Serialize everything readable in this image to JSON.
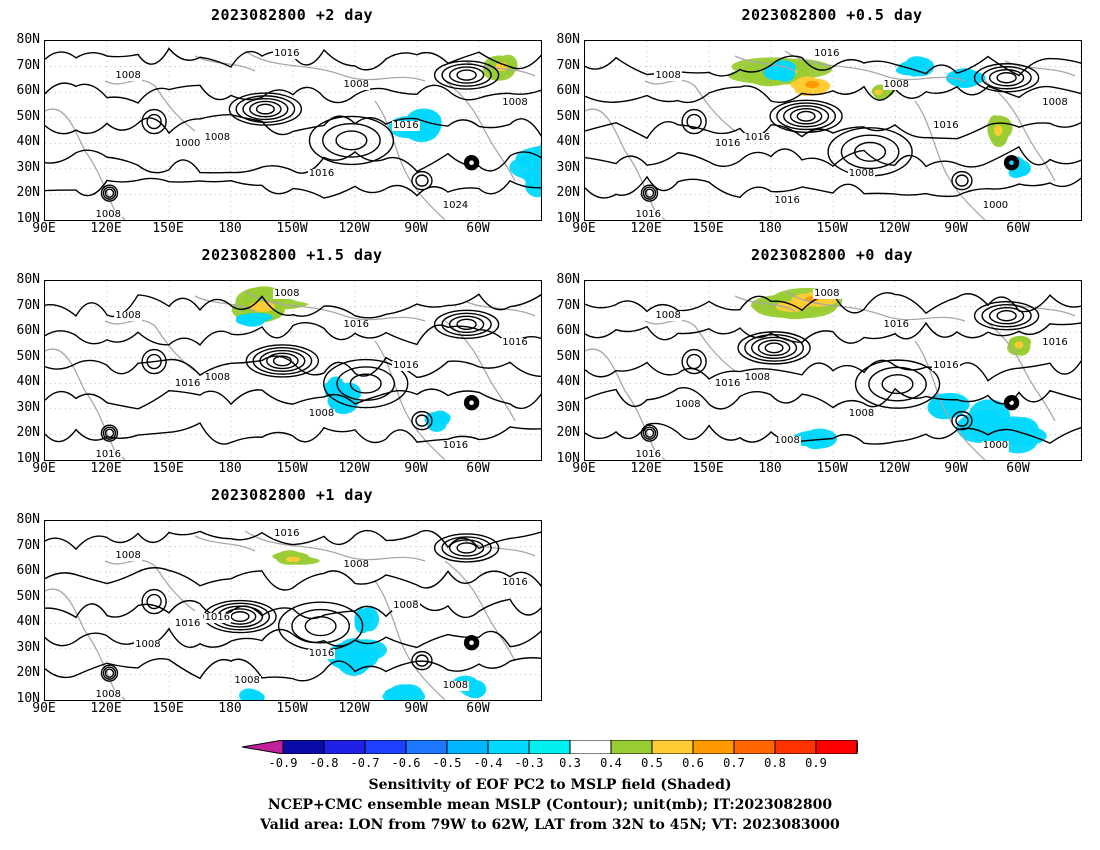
{
  "panels": [
    {
      "title": "2023082800 +2 day",
      "contour_labels": [
        "1008",
        "1016",
        "1008",
        "1008",
        "1000",
        "1016",
        "1024",
        "1016",
        "1008",
        "1008"
      ],
      "shading": [
        {
          "lon": -24,
          "lat": 32,
          "rx": 22,
          "ry": 8,
          "v": -0.35
        },
        {
          "lon": -28,
          "lat": 25,
          "rx": 10,
          "ry": 5,
          "v": -0.35
        },
        {
          "lon": -12,
          "lat": 30,
          "rx": 15,
          "ry": 7,
          "v": -0.35
        },
        {
          "lon": -58,
          "lat": 75,
          "rx": 12,
          "ry": 3,
          "v": 0.4
        },
        {
          "lon": -18,
          "lat": 72,
          "rx": 16,
          "ry": 5,
          "v": 0.4
        },
        {
          "lon": -12,
          "lat": 70,
          "rx": 5,
          "ry": 3,
          "v": 0.55
        },
        {
          "lon": -75,
          "lat": 60,
          "rx": 14,
          "ry": 5,
          "v": 0.4
        },
        {
          "lon": -90,
          "lat": 48,
          "rx": 12,
          "ry": 6,
          "v": -0.35
        },
        {
          "lon": -70,
          "lat": 35,
          "rx": 5,
          "ry": 3,
          "v": 0.4
        },
        {
          "lon": -49,
          "lat": 70,
          "rx": 8,
          "ry": 5,
          "v": 0.45
        }
      ]
    },
    {
      "title": "2023082800 +0.5 day",
      "contour_labels": [
        "1008",
        "1016",
        "1008",
        "1016",
        "1016",
        "1008",
        "1000",
        "1016",
        "1016",
        "1008",
        "1016"
      ],
      "shading": [
        {
          "lon": -175,
          "lat": 68,
          "rx": 22,
          "ry": 6,
          "v": 0.45
        },
        {
          "lon": -160,
          "lat": 63,
          "rx": 10,
          "ry": 4,
          "v": 0.6
        },
        {
          "lon": -95,
          "lat": 70,
          "rx": 18,
          "ry": 6,
          "v": 0.4
        },
        {
          "lon": -70,
          "lat": 45,
          "rx": 6,
          "ry": 6,
          "v": 0.5
        },
        {
          "lon": -85,
          "lat": 45,
          "rx": 4,
          "ry": 4,
          "v": 0.4
        },
        {
          "lon": -85,
          "lat": 65,
          "rx": 10,
          "ry": 4,
          "v": -0.35
        },
        {
          "lon": -110,
          "lat": 70,
          "rx": 8,
          "ry": 4,
          "v": -0.35
        },
        {
          "lon": -175,
          "lat": 68,
          "rx": 8,
          "ry": 4,
          "v": -0.35
        },
        {
          "lon": -128,
          "lat": 60,
          "rx": 6,
          "ry": 3,
          "v": 0.5
        },
        {
          "lon": -60,
          "lat": 30,
          "rx": 5,
          "ry": 4,
          "v": -0.35
        }
      ]
    },
    {
      "title": "2023082800 +1.5 day",
      "contour_labels": [
        "1008",
        "1008",
        "1016",
        "1008",
        "1016",
        "1008",
        "1016",
        "1016",
        "1016",
        "1016"
      ],
      "shading": [
        {
          "lon": -165,
          "lat": 70,
          "rx": 18,
          "ry": 6,
          "v": 0.45
        },
        {
          "lon": -140,
          "lat": 75,
          "rx": 12,
          "ry": 4,
          "v": 0.4
        },
        {
          "lon": -125,
          "lat": 35,
          "rx": 8,
          "ry": 6,
          "v": -0.35
        },
        {
          "lon": -130,
          "lat": 38,
          "rx": 5,
          "ry": 4,
          "v": -0.35
        },
        {
          "lon": -108,
          "lat": 65,
          "rx": 8,
          "ry": 4,
          "v": 0.4
        },
        {
          "lon": -70,
          "lat": 35,
          "rx": 6,
          "ry": 5,
          "v": 0.4
        },
        {
          "lon": -80,
          "lat": 25,
          "rx": 5,
          "ry": 4,
          "v": -0.35
        },
        {
          "lon": -170,
          "lat": 65,
          "rx": 8,
          "ry": 3,
          "v": -0.35
        }
      ]
    },
    {
      "title": "2023082800 +0 day",
      "contour_labels": [
        "1008",
        "1008",
        "1016",
        "1008",
        "1016",
        "1008",
        "1000",
        "1016",
        "1016",
        "1016",
        "1008",
        "1008"
      ],
      "shading": [
        {
          "lon": -170,
          "lat": 70,
          "rx": 22,
          "ry": 6,
          "v": 0.45
        },
        {
          "lon": -160,
          "lat": 73,
          "rx": 10,
          "ry": 3,
          "v": 0.6
        },
        {
          "lon": -130,
          "lat": 75,
          "rx": 10,
          "ry": 3,
          "v": 0.4
        },
        {
          "lon": -170,
          "lat": 55,
          "rx": 8,
          "ry": 4,
          "v": 0.4
        },
        {
          "lon": -65,
          "lat": 60,
          "rx": 6,
          "ry": 4,
          "v": 0.4
        },
        {
          "lon": -60,
          "lat": 55,
          "rx": 6,
          "ry": 4,
          "v": 0.45
        },
        {
          "lon": -75,
          "lat": 25,
          "rx": 12,
          "ry": 7,
          "v": -0.35
        },
        {
          "lon": -60,
          "lat": 20,
          "rx": 12,
          "ry": 6,
          "v": -0.35
        },
        {
          "lon": -158,
          "lat": 18,
          "rx": 10,
          "ry": 4,
          "v": -0.35
        },
        {
          "lon": -95,
          "lat": 32,
          "rx": 10,
          "ry": 5,
          "v": -0.35
        },
        {
          "lon": -160,
          "lat": 40,
          "rx": 6,
          "ry": 4,
          "v": 0.4
        }
      ]
    },
    {
      "title": "2023082800 +1 day",
      "contour_labels": [
        "1008",
        "1016",
        "1008",
        "1016",
        "1016",
        "1016",
        "1008",
        "1008",
        "1008",
        "1016",
        "1008",
        "1008"
      ],
      "shading": [
        {
          "lon": -118,
          "lat": 30,
          "rx": 12,
          "ry": 8,
          "v": -0.35
        },
        {
          "lon": -115,
          "lat": 40,
          "rx": 6,
          "ry": 5,
          "v": -0.35
        },
        {
          "lon": -120,
          "lat": 65,
          "rx": 10,
          "ry": 4,
          "v": 0.4
        },
        {
          "lon": -150,
          "lat": 65,
          "rx": 10,
          "ry": 3,
          "v": 0.45
        },
        {
          "lon": -170,
          "lat": 62,
          "rx": 6,
          "ry": 3,
          "v": 0.4
        },
        {
          "lon": -130,
          "lat": 38,
          "rx": 6,
          "ry": 6,
          "v": 0.4
        },
        {
          "lon": -55,
          "lat": 42,
          "rx": 5,
          "ry": 5,
          "v": 0.4
        },
        {
          "lon": -65,
          "lat": 15,
          "rx": 8,
          "ry": 5,
          "v": -0.35
        },
        {
          "lon": -95,
          "lat": 12,
          "rx": 10,
          "ry": 4,
          "v": -0.35
        },
        {
          "lon": -170,
          "lat": 12,
          "rx": 5,
          "ry": 3,
          "v": -0.35
        },
        {
          "lon": -90,
          "lat": 45,
          "rx": 5,
          "ry": 3,
          "v": 0.4
        }
      ]
    }
  ],
  "axes": {
    "lat_labels": [
      "80N",
      "70N",
      "60N",
      "50N",
      "40N",
      "30N",
      "20N",
      "10N"
    ],
    "lon_labels": [
      "90E",
      "120E",
      "150E",
      "180",
      "150W",
      "120W",
      "90W",
      "60W"
    ]
  },
  "colorbar": {
    "ticks": [
      "-0.9",
      "-0.8",
      "-0.7",
      "-0.6",
      "-0.5",
      "-0.4",
      "-0.3",
      "0.3",
      "0.4",
      "0.5",
      "0.6",
      "0.7",
      "0.8",
      "0.9"
    ],
    "colors": [
      "#c0209a",
      "#0a0aa6",
      "#1f1fe6",
      "#2040ff",
      "#1e78ff",
      "#00b4ff",
      "#00d8ff",
      "#00f0f0",
      "#ffffff",
      "#99cc33",
      "#ffcc33",
      "#ff9900",
      "#ff6600",
      "#ff3300",
      "#ff0000",
      "#ff99cc"
    ]
  },
  "captions": [
    "Sensitivity of EOF PC2 to MSLP field (Shaded)",
    "NCEP+CMC ensemble mean MSLP (Contour); unit(mb); IT:2023082800",
    "Valid area: LON from 79W to 62W, LAT from 32N to 45N; VT: 2023083000"
  ]
}
